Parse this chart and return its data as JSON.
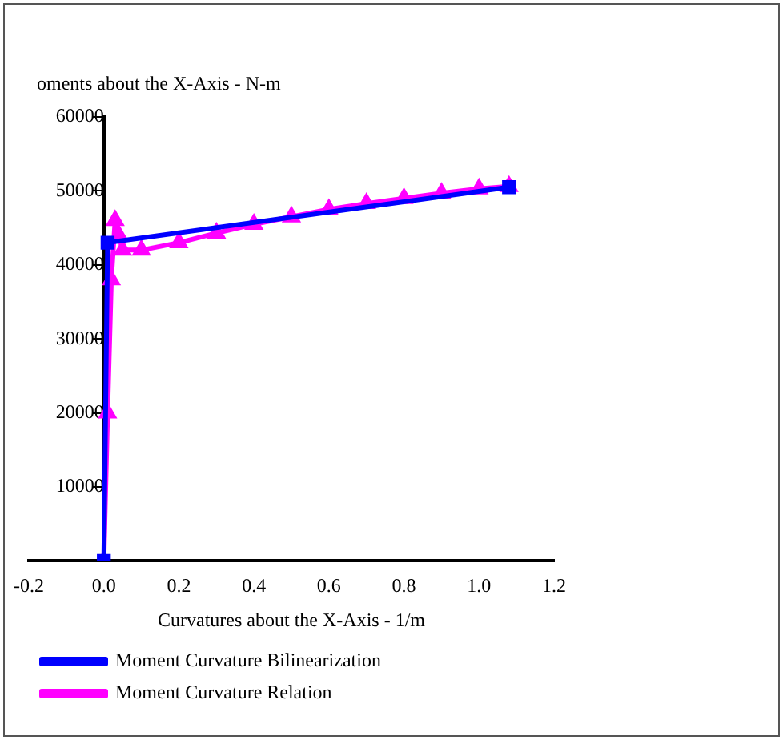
{
  "chart_data": {
    "type": "line",
    "ylabel": "oments about the X-Axis - N-m",
    "xlabel": "Curvatures about the X-Axis - 1/m",
    "xlim": [
      -0.2,
      1.2
    ],
    "xticks": [
      -0.2,
      {
        "value": 0,
        "label": "0.0"
      },
      0.2,
      0.4,
      0.6,
      0.8,
      {
        "value": 1,
        "label": "1.0"
      },
      1.2
    ],
    "ylim": [
      0,
      60000
    ],
    "yticks": [
      {
        "value": 0,
        "label": null
      },
      10000,
      20000,
      30000,
      40000,
      50000,
      60000
    ],
    "grid": false,
    "legend": "bottom left",
    "series": [
      {
        "name": "Moment Curvature Relation",
        "color": "#ff00ff",
        "marker": "triangle",
        "x": [
          0,
          0.01,
          0.02,
          0.03,
          0.04,
          0.05,
          0.1,
          0.2,
          0.3,
          0.4,
          0.5,
          0.6,
          0.7,
          0.8,
          0.9,
          1.0,
          1.08
        ],
        "values": [
          0,
          20000,
          38000,
          46000,
          44000,
          42000,
          42000,
          43000,
          44300,
          45500,
          46500,
          47500,
          48300,
          49000,
          49700,
          50300,
          50600
        ]
      },
      {
        "name": "Moment Curvature Bilinearization",
        "color": "#0000ff",
        "marker": "square",
        "x": [
          0,
          0.01,
          1.08
        ],
        "values": [
          0,
          43000,
          50500
        ]
      }
    ]
  }
}
